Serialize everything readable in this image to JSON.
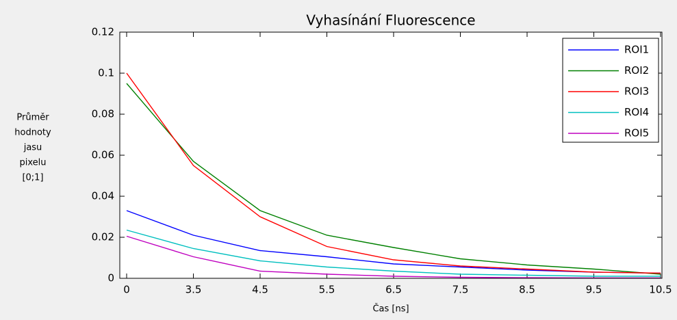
{
  "chart_data": {
    "type": "line",
    "title": "Vyhasínání Fluorescence",
    "xlabel": "Čas [ns]",
    "ylabel": [
      "Průměr",
      "hodnoty",
      "jasu",
      "pixelu",
      "[0;1]"
    ],
    "categories": [
      "0",
      "3.5",
      "4.5",
      "5.5",
      "6.5",
      "7.5",
      "8.5",
      "9.5",
      "10.5"
    ],
    "series": [
      {
        "name": "ROI1",
        "color": "#0000ff",
        "values": [
          0.033,
          0.021,
          0.0135,
          0.0105,
          0.007,
          0.0055,
          0.004,
          0.003,
          0.0025
        ]
      },
      {
        "name": "ROI2",
        "color": "#008000",
        "values": [
          0.095,
          0.057,
          0.033,
          0.021,
          0.015,
          0.0095,
          0.0065,
          0.0045,
          0.002
        ]
      },
      {
        "name": "ROI3",
        "color": "#ff0000",
        "values": [
          0.1,
          0.055,
          0.03,
          0.0155,
          0.009,
          0.006,
          0.0045,
          0.003,
          0.0025
        ]
      },
      {
        "name": "ROI4",
        "color": "#00bfbf",
        "values": [
          0.0235,
          0.0145,
          0.0085,
          0.0055,
          0.0035,
          0.002,
          0.0015,
          0.001,
          0.001
        ]
      },
      {
        "name": "ROI5",
        "color": "#bf00bf",
        "values": [
          0.0205,
          0.0105,
          0.0035,
          0.002,
          0.001,
          0.0005,
          0.0003,
          0.0002,
          0.0002
        ]
      }
    ],
    "ylim": [
      0,
      0.12
    ],
    "yticks": [
      0,
      0.02,
      0.04,
      0.06,
      0.08,
      0.1,
      0.12
    ],
    "legend": "top-right",
    "grid": false
  }
}
